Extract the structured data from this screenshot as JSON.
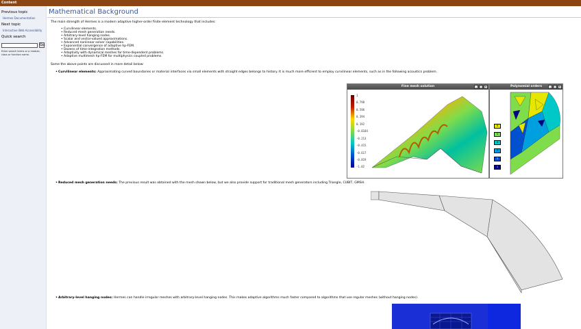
{
  "topbar": {
    "label": "Content"
  },
  "sidebar": {
    "prev_heading": "Previous topic",
    "prev_link": "Hermes Documentation",
    "next_heading": "Next topic",
    "next_link": "Interactive Web Accessibility",
    "search_heading": "Quick search",
    "search_button": "Go",
    "search_help": "Enter search terms or a module, class or function name."
  },
  "page": {
    "title": "Mathematical Background",
    "intro": "The main strength of Hermes is a modern adaptive higher-order finite element technology that includes:",
    "features": [
      "Curvilinear elements.",
      "Reduced mesh generation needs.",
      "Arbitrary-level hanging nodes.",
      "Scalar and vector-valued approximations.",
      "Advanced nonlinear solver capabilities.",
      "Exponential convergence of adaptive hp-FEM.",
      "Dozens of time-integration methods.",
      "Adaptivity with dynamical meshes for time-dependent problems.",
      "Adaptive multimesh hp-FEM for multiphysics coupled problems."
    ],
    "discussed": "Some the above points are discussed in more detail below:",
    "sections": [
      {
        "label": "Curvilinear elements:",
        "text": "Approximating curved boundaries or material interfaces via small elements with straight edges belongs to history. It is much more efficient to employ curvilinear elements, such as in the following acoustics problem."
      },
      {
        "label": "Reduced mesh generation needs:",
        "text": "The previous result was obtained with the mesh shown below, but we also provide support for traditional mesh generators including Triangle, CUBIT, GMSH."
      },
      {
        "label": "Arbitrary-level hanging nodes:",
        "text": "Hermes can handle irregular meshes with arbitrary-level hanging nodes. This makes adaptive algorithms much faster compared to algorithms that use regular meshes (without hanging nodes)."
      }
    ]
  },
  "fine_mesh_window": {
    "title": "Fine mesh solution",
    "colorbar_labels": [
      "1",
      "0.798",
      "0.596",
      "0.394",
      "0.192",
      "-0.0104",
      "-0.213",
      "-0.415",
      "-0.617",
      "-0.819",
      "-1.02"
    ]
  },
  "poly_window": {
    "title": "Polynomial orders",
    "orders": [
      "6",
      "5",
      "4",
      "3",
      "2",
      "1"
    ]
  },
  "colors": {
    "topbar": "#8b4513",
    "title": "#355899",
    "link": "#2a4f9c",
    "sidebar_bg": "#eef0f7"
  }
}
